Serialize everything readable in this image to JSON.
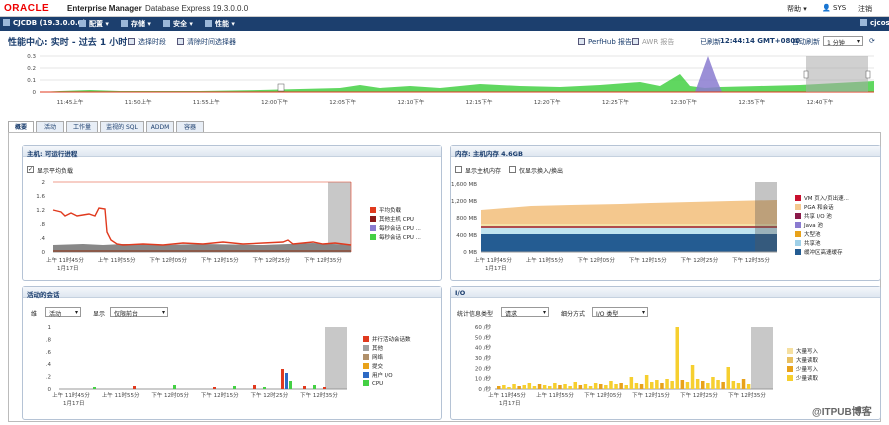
{
  "header": {
    "logo": "ORACLE",
    "app": "Enterprise Manager",
    "version": "Database Express 19.3.0.0.0",
    "help": "帮助 ▾",
    "user": "SYS",
    "logout": "注销"
  },
  "nav": {
    "db": "CJCDB (19.3.0.0.0)",
    "items": [
      "配置 ▾",
      "存储 ▾",
      "安全 ▾",
      "性能 ▾"
    ],
    "right": "cjcos"
  },
  "page": {
    "title": "性能中心: 实时 - 过去 1 小时",
    "select_time": "选择时段",
    "select_time_picker": "清除时间选择器",
    "perfhub": "PerfHub 报告",
    "awr": "AWR 报告",
    "refreshed_label": "已刷新",
    "refreshed_time": "12:44:14 GMT+0800",
    "auto_refresh_label": "自动刷新",
    "auto_refresh_value": "1 分钟"
  },
  "overview": {
    "yticks": [
      "0.3",
      "0.2",
      "0.1",
      "0"
    ],
    "xticks": [
      "11:45上午",
      "11:50上午",
      "11:55上午",
      "12:00下午",
      "12:05下午",
      "12:10下午",
      "12:15下午",
      "12:20下午",
      "12:25下午",
      "12:30下午",
      "12:35下午",
      "12:40下午"
    ]
  },
  "tabs": [
    "概要",
    "活动",
    "工作量",
    "监视的 SQL",
    "ADDM",
    "容器"
  ],
  "panels": {
    "host": {
      "title": "主机: 可运行进程",
      "show_avg": "显示平均负载",
      "yticks": [
        "1.6",
        "1.2",
        ".8",
        ".4",
        "0"
      ],
      "yticks2": [
        "2",
        "1.6",
        "1.2",
        ".8",
        ".4",
        "0"
      ],
      "xticks": [
        "上午 11时45分",
        "上午 11时55分",
        "下午 12时05分",
        "下午 12时15分",
        "下午 12时25分",
        "下午 12时35分"
      ],
      "date": "1月17日",
      "legend": [
        "平均负载",
        "其他主机 CPU",
        "每秒会话 CPU ...",
        "每秒会话 CPU ..."
      ]
    },
    "memory": {
      "title": "内存: 主机内存 4.6GB",
      "show_host_mem": "显示主机内存",
      "show_swap": "仅显示换入/换出",
      "yticks": [
        "1,600 MB",
        "1,200 MB",
        "800 MB",
        "400 MB",
        "0 MB"
      ],
      "xticks": [
        "上午 11时45分",
        "上午 11时55分",
        "下午 12时05分",
        "下午 12时15分",
        "下午 12时25分",
        "下午 12时35分"
      ],
      "date": "1月17日",
      "legend": [
        "VM 页入/页出速...",
        "PGA 和会话",
        "共享 I/O 池",
        "Java 池",
        "大型池",
        "共享池",
        "缓冲区高速缓存"
      ]
    },
    "sessions": {
      "title": "活动的会话",
      "dim_label": "维",
      "dim_value": "活动",
      "show_label": "显示",
      "show_value": "仅限前台",
      "yticks": [
        "1",
        ".8",
        ".6",
        ".4",
        ".2",
        "0"
      ],
      "xticks": [
        "上午 11时45分",
        "上午 11时55分",
        "下午 12时05分",
        "下午 12时15分",
        "下午 12时25分",
        "下午 12时35分"
      ],
      "date": "1月17日",
      "legend": [
        "并行活动会话数",
        "其他",
        "网络",
        "提交",
        "用户 I/O",
        "CPU"
      ]
    },
    "io": {
      "title": "I/O",
      "stat_label": "统计信息类型",
      "stat_value": "请求",
      "group_label": "细分方式",
      "group_value": "I/O 类型",
      "yticks": [
        "60 /秒",
        "50 /秒",
        "40 /秒",
        "30 /秒",
        "20 /秒",
        "10 /秒",
        "0 /秒"
      ],
      "xticks": [
        "上午 11时45分",
        "上午 11时55分",
        "下午 12时05分",
        "下午 12时15分",
        "下午 12时25分",
        "下午 12时35分"
      ],
      "date": "1月17日",
      "legend": [
        "大量写入",
        "大量读取",
        "少量写入",
        "少量读取"
      ]
    }
  },
  "watermark": "@ITPUB博客",
  "colors": {
    "nav": "#1c3f6e",
    "red": "#e03a1e",
    "green": "#33cc33",
    "purple": "#8a7bd0"
  }
}
